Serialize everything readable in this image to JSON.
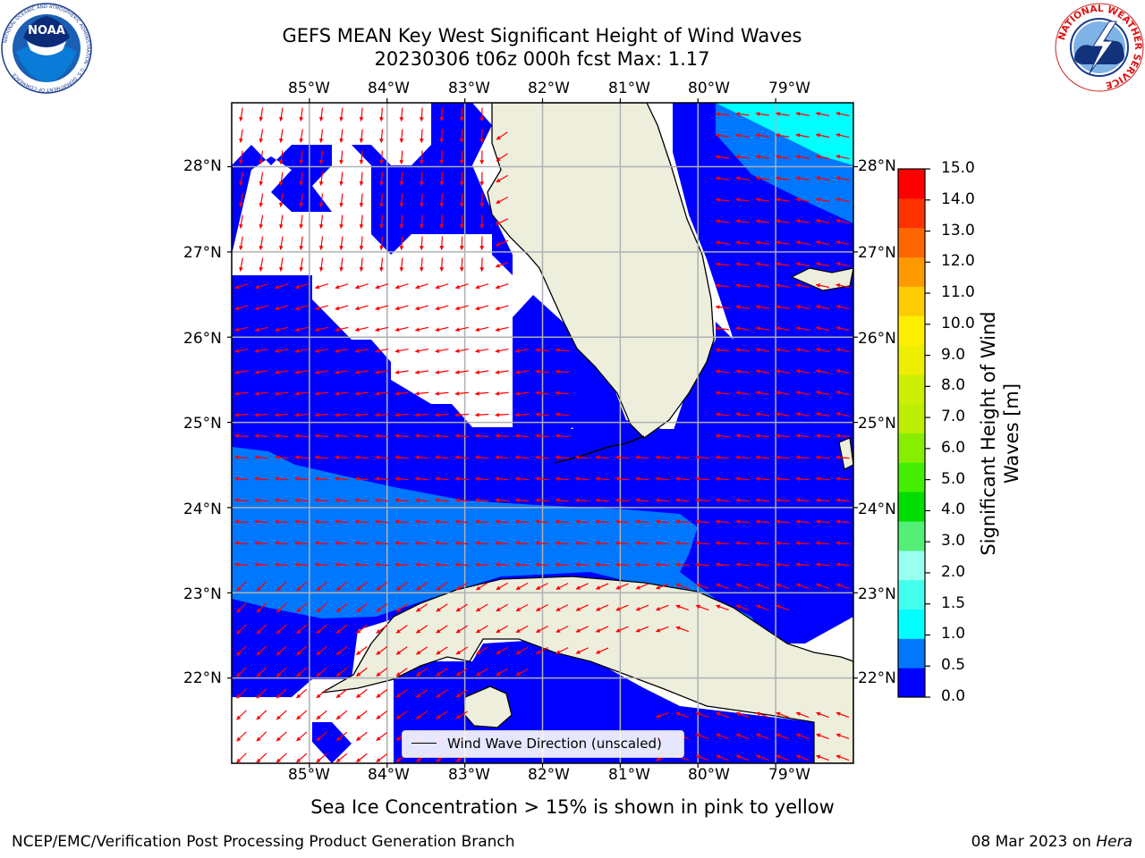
{
  "title_line1": "GEFS MEAN Key West Significant Height of Wind Waves",
  "title_line2": "20230306 t06z 000h fcst   Max: 1.17",
  "subtitle": "Sea Ice Concentration > 15% is shown in pink to yellow",
  "footer_left": "NCEP/EMC/Verification Post Processing Product Generation Branch",
  "footer_date": "08 Mar 2023 on",
  "footer_host": "Hera",
  "legend_label": "Wind Wave Direction (unscaled)",
  "logo_noaa": {
    "text": "NOAA",
    "ring": "NATIONAL OCEANIC AND ATMOSPHERIC ADMINISTRATION · U.S. DEPARTMENT OF COMMERCE"
  },
  "logo_nws": {
    "ring": "NATIONAL WEATHER SERVICE"
  },
  "map": {
    "lon_range": [
      -86.0,
      -78.0
    ],
    "lat_range": [
      21.0,
      28.75
    ],
    "lon_ticks": [
      "85°W",
      "84°W",
      "83°W",
      "82°W",
      "81°W",
      "80°W",
      "79°W"
    ],
    "lat_ticks": [
      "28°N",
      "27°N",
      "26°N",
      "25°N",
      "24°N",
      "23°N",
      "22°N"
    ],
    "land_color": "#eeeedd",
    "water_low_color": "#0000ff",
    "arrow_color": "#ff0000",
    "grid_color": "#b0b0b0"
  },
  "colorbar": {
    "label": "Significant Height of Wind Waves [m]",
    "ticks": [
      "15.0",
      "14.0",
      "13.0",
      "12.0",
      "11.0",
      "10.0",
      "9.0",
      "8.0",
      "7.0",
      "6.0",
      "5.0",
      "4.0",
      "3.0",
      "2.0",
      "1.5",
      "1.0",
      "0.5",
      "0.0"
    ],
    "colors": [
      "#0000ff",
      "#0077ff",
      "#00ffff",
      "#44ffee",
      "#99ffee",
      "#55ee77",
      "#00dd00",
      "#44ee00",
      "#88ee00",
      "#bbee00",
      "#ccee00",
      "#eeee00",
      "#ffee00",
      "#ffcc00",
      "#ff9900",
      "#ff6600",
      "#ff3300",
      "#ff0000"
    ]
  }
}
